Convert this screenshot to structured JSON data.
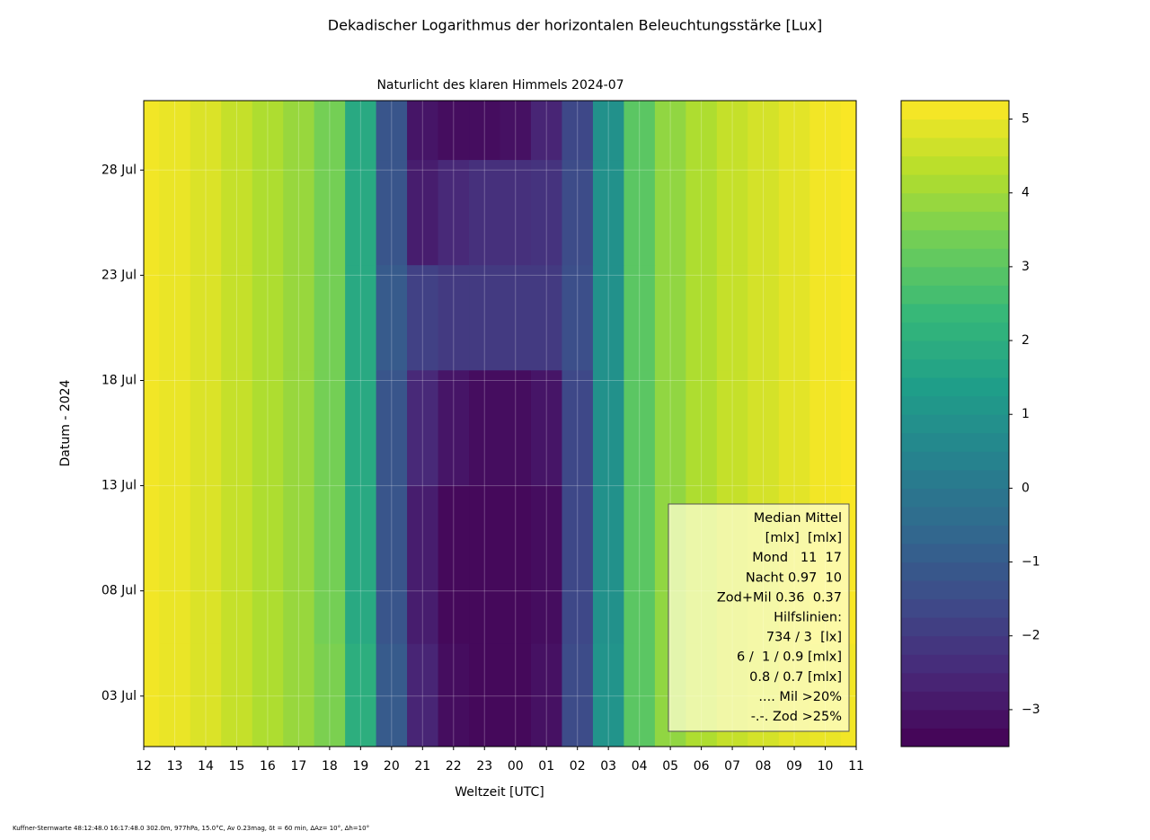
{
  "chart_data": {
    "type": "heatmap",
    "title": "Dekadischer Logarithmus der horizontalen Beleuchtungsstärke [Lux]",
    "subtitle": "Naturlicht des klaren Himmels 2024-07",
    "x_label": "Weltzeit [UTC]",
    "y_label": "Datum - 2024",
    "xlim": [
      12,
      35
    ],
    "xticks": [
      12,
      13,
      14,
      15,
      16,
      17,
      18,
      19,
      20,
      21,
      22,
      23,
      {
        "value": 24,
        "label": "00"
      },
      {
        "value": 25,
        "label": "01"
      },
      {
        "value": 26,
        "label": "02"
      },
      {
        "value": 27,
        "label": "03"
      },
      {
        "value": 28,
        "label": "04"
      },
      {
        "value": 29,
        "label": "05"
      },
      {
        "value": 30,
        "label": "06"
      },
      {
        "value": 31,
        "label": "07"
      },
      {
        "value": 32,
        "label": "08"
      },
      {
        "value": 33,
        "label": "09"
      },
      {
        "value": 34,
        "label": "10"
      },
      {
        "value": 35,
        "label": "11"
      }
    ],
    "ylim": [
      0.6,
      31.3
    ],
    "yticks": [
      {
        "value": 3,
        "label": "03 Jul"
      },
      {
        "value": 8,
        "label": "08 Jul"
      },
      {
        "value": 13,
        "label": "13 Jul"
      },
      {
        "value": 18,
        "label": "18 Jul"
      },
      {
        "value": 23,
        "label": "23 Jul"
      },
      {
        "value": 28,
        "label": "28 Jul"
      }
    ],
    "grid": true,
    "x_grid": [
      12,
      13,
      14,
      15,
      16,
      17,
      18,
      19,
      20,
      21,
      22,
      23,
      24,
      25,
      26,
      27,
      28,
      29,
      30,
      31,
      32,
      33,
      34,
      35
    ],
    "y_grid": [
      1,
      10,
      16,
      21,
      26,
      31
    ],
    "z": [
      [
        5.1,
        5.0,
        4.8,
        4.5,
        4.2,
        3.9,
        3.5,
        2.0,
        -1.0,
        -2.6,
        -3.2,
        -3.3,
        -3.3,
        -3.1,
        -1.5,
        1.0,
        3.0,
        3.8,
        4.2,
        4.5,
        4.7,
        4.9,
        5.0,
        5.1
      ],
      [
        5.1,
        5.0,
        4.8,
        4.5,
        4.2,
        3.9,
        3.4,
        1.8,
        -1.2,
        -2.8,
        -3.3,
        -3.3,
        -3.3,
        -3.2,
        -1.6,
        0.9,
        3.0,
        3.8,
        4.2,
        4.5,
        4.7,
        4.9,
        5.1,
        5.2
      ],
      [
        5.1,
        5.0,
        4.8,
        4.5,
        4.2,
        3.9,
        3.4,
        1.8,
        -1.2,
        -2.5,
        -3.0,
        -3.2,
        -3.2,
        -3.0,
        -1.6,
        0.9,
        3.0,
        3.8,
        4.2,
        4.5,
        4.7,
        4.9,
        5.1,
        5.2
      ],
      [
        5.1,
        5.0,
        4.8,
        4.5,
        4.2,
        3.9,
        3.4,
        1.8,
        -1.0,
        -1.8,
        -2.0,
        -2.0,
        -2.0,
        -2.0,
        -1.4,
        0.9,
        3.0,
        3.8,
        4.2,
        4.5,
        4.7,
        4.9,
        5.1,
        5.2
      ],
      [
        5.1,
        5.0,
        4.8,
        4.5,
        4.2,
        3.9,
        3.4,
        1.8,
        -1.2,
        -2.8,
        -2.5,
        -2.3,
        -2.3,
        -2.2,
        -1.5,
        0.9,
        3.0,
        3.8,
        4.2,
        4.5,
        4.7,
        4.9,
        5.1,
        5.2
      ],
      [
        5.1,
        5.0,
        4.8,
        4.5,
        4.2,
        3.9,
        3.4,
        1.8,
        -1.2,
        -3.0,
        -3.2,
        -3.2,
        -3.1,
        -2.6,
        -1.6,
        0.9,
        3.0,
        3.8,
        4.2,
        4.5,
        4.7,
        4.9,
        5.1,
        5.2
      ]
    ],
    "clim": [
      -3.5,
      5.25
    ],
    "cticks": [
      {
        "value": 5,
        "label": "5"
      },
      {
        "value": 4,
        "label": "4"
      },
      {
        "value": 3,
        "label": "3"
      },
      {
        "value": 2,
        "label": "2"
      },
      {
        "value": 1,
        "label": "1"
      },
      {
        "value": 0,
        "label": "0"
      },
      {
        "value": -1,
        "label": "−1"
      },
      {
        "value": -2,
        "label": "−2"
      },
      {
        "value": -3,
        "label": "−3"
      }
    ],
    "clevel_step": 0.25,
    "legend_lines": [
      "Median Mittel",
      "[mlx]  [mlx]",
      "Mond   11  17",
      "Nacht 0.97  10",
      "Zod+Mil 0.36  0.37",
      "Hilfslinien:",
      "734 / 3  [lx]",
      "6 /  1 / 0.9 [mlx]",
      "0.8 / 0.7 [mlx]",
      ".... Mil >20%",
      "-.-. Zod >25%"
    ],
    "footer": "Kuffner-Sternwarte 48:12:48.0 16:17:48.0 302.0m,  977hPa, 15.0°C, Av 0.23mag, δt = 60 min, ΔAz= 10°, Δh=10°"
  }
}
